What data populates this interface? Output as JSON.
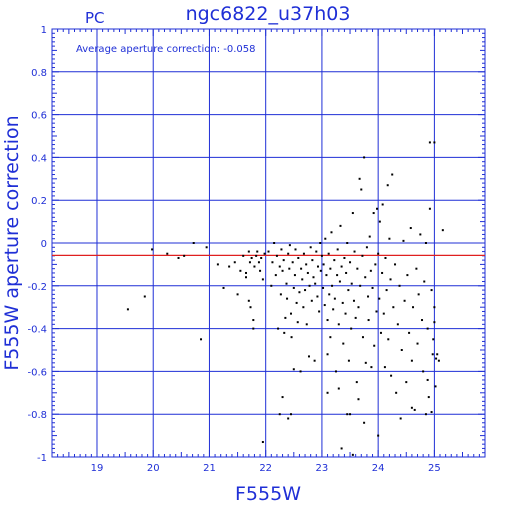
{
  "chart_data": {
    "type": "scatter",
    "title": "ngc6822_u37h03",
    "corner_label": "PC",
    "xlabel": "F555W",
    "ylabel": "F555W aperture correction",
    "annotation": "Average aperture correction: -0.058",
    "xlim": [
      18.2,
      25.9
    ],
    "ylim": [
      -1,
      1
    ],
    "x_ticks": [
      19,
      20,
      21,
      22,
      23,
      24,
      25
    ],
    "y_ticks": [
      -1,
      -0.8,
      -0.6,
      -0.4,
      -0.2,
      0,
      0.2,
      0.4,
      0.6,
      0.8,
      1
    ],
    "x_tick_labels": [
      "19",
      "20",
      "21",
      "22",
      "23",
      "24",
      "25"
    ],
    "y_tick_labels": [
      "-1",
      "-0.8",
      "-0.6",
      "-0.4",
      "-0.2",
      "0",
      "0.2",
      "0.4",
      "0.6",
      "0.8",
      "1"
    ],
    "grid": true,
    "reference_line": {
      "y": -0.058,
      "color": "#e02020"
    },
    "colors": {
      "axes": "#1f2fd6",
      "points": "#000000",
      "reference": "#e02020"
    },
    "points": [
      [
        19.55,
        -0.31
      ],
      [
        19.85,
        -0.25
      ],
      [
        19.98,
        -0.03
      ],
      [
        20.25,
        -0.05
      ],
      [
        20.45,
        -0.07
      ],
      [
        20.55,
        -0.06
      ],
      [
        20.72,
        0.0
      ],
      [
        20.95,
        -0.02
      ],
      [
        20.85,
        -0.45
      ],
      [
        21.15,
        -0.1
      ],
      [
        21.25,
        -0.21
      ],
      [
        21.35,
        -0.11
      ],
      [
        21.45,
        -0.09
      ],
      [
        21.5,
        -0.24
      ],
      [
        21.55,
        -0.13
      ],
      [
        21.6,
        -0.06
      ],
      [
        21.65,
        -0.16
      ],
      [
        21.7,
        -0.04
      ],
      [
        21.72,
        -0.09
      ],
      [
        21.75,
        -0.07
      ],
      [
        21.78,
        -0.36
      ],
      [
        21.8,
        -0.11
      ],
      [
        21.83,
        -0.06
      ],
      [
        21.85,
        -0.04
      ],
      [
        21.88,
        -0.09
      ],
      [
        21.9,
        -0.13
      ],
      [
        21.92,
        -0.07
      ],
      [
        21.95,
        -0.17
      ],
      [
        21.98,
        -0.05
      ],
      [
        21.65,
        -0.14
      ],
      [
        21.7,
        -0.27
      ],
      [
        21.73,
        -0.3
      ],
      [
        21.78,
        -0.4
      ],
      [
        21.95,
        -0.93
      ],
      [
        22.05,
        -0.04
      ],
      [
        22.1,
        -0.2
      ],
      [
        22.12,
        -0.09
      ],
      [
        22.15,
        0.0
      ],
      [
        22.18,
        -0.15
      ],
      [
        22.2,
        -0.06
      ],
      [
        22.22,
        -0.4
      ],
      [
        22.25,
        -0.11
      ],
      [
        22.27,
        -0.24
      ],
      [
        22.28,
        -0.03
      ],
      [
        22.3,
        -0.13
      ],
      [
        22.32,
        -0.08
      ],
      [
        22.33,
        -0.42
      ],
      [
        22.35,
        -0.35
      ],
      [
        22.37,
        -0.19
      ],
      [
        22.38,
        -0.26
      ],
      [
        22.4,
        -0.05
      ],
      [
        22.42,
        -0.12
      ],
      [
        22.43,
        -0.01
      ],
      [
        22.45,
        -0.33
      ],
      [
        22.46,
        -0.44
      ],
      [
        22.48,
        -0.09
      ],
      [
        22.5,
        -0.21
      ],
      [
        22.5,
        -0.59
      ],
      [
        22.52,
        -0.15
      ],
      [
        22.53,
        -0.03
      ],
      [
        22.55,
        -0.28
      ],
      [
        22.57,
        -0.37
      ],
      [
        22.58,
        -0.07
      ],
      [
        22.6,
        -0.23
      ],
      [
        22.62,
        -0.6
      ],
      [
        22.63,
        -0.12
      ],
      [
        22.65,
        -0.17
      ],
      [
        22.67,
        -0.3
      ],
      [
        22.68,
        -0.05
      ],
      [
        22.7,
        -0.22
      ],
      [
        22.72,
        -0.1
      ],
      [
        22.73,
        -0.38
      ],
      [
        22.75,
        -0.14
      ],
      [
        22.77,
        -0.53
      ],
      [
        22.78,
        -0.2
      ],
      [
        22.8,
        -0.02
      ],
      [
        22.82,
        -0.27
      ],
      [
        22.83,
        -0.08
      ],
      [
        22.85,
        -0.16
      ],
      [
        22.87,
        -0.55
      ],
      [
        22.88,
        -0.19
      ],
      [
        22.9,
        -0.04
      ],
      [
        22.92,
        -0.25
      ],
      [
        22.93,
        -0.11
      ],
      [
        22.95,
        -0.32
      ],
      [
        22.97,
        0.0
      ],
      [
        22.98,
        -0.13
      ],
      [
        22.25,
        -0.8
      ],
      [
        22.45,
        -0.8
      ],
      [
        22.4,
        -0.82
      ],
      [
        22.3,
        -0.72
      ],
      [
        23.0,
        -0.06
      ],
      [
        23.02,
        -0.21
      ],
      [
        23.03,
        -0.1
      ],
      [
        23.05,
        -0.29
      ],
      [
        23.06,
        0.02
      ],
      [
        23.08,
        -0.15
      ],
      [
        23.1,
        -0.36
      ],
      [
        23.1,
        -0.52
      ],
      [
        23.12,
        -0.05
      ],
      [
        23.13,
        -0.24
      ],
      [
        23.15,
        -0.12
      ],
      [
        23.15,
        -0.44
      ],
      [
        23.17,
        0.05
      ],
      [
        23.18,
        -0.2
      ],
      [
        23.2,
        -0.31
      ],
      [
        23.22,
        -0.08
      ],
      [
        23.23,
        -0.26
      ],
      [
        23.25,
        -0.6
      ],
      [
        23.27,
        -0.15
      ],
      [
        23.28,
        -0.03
      ],
      [
        23.3,
        -0.38
      ],
      [
        23.32,
        -0.18
      ],
      [
        23.33,
        0.08
      ],
      [
        23.35,
        -0.11
      ],
      [
        23.37,
        -0.28
      ],
      [
        23.38,
        -0.47
      ],
      [
        23.4,
        -0.07
      ],
      [
        23.42,
        -0.33
      ],
      [
        23.43,
        -0.14
      ],
      [
        23.45,
        0.0
      ],
      [
        23.47,
        -0.22
      ],
      [
        23.48,
        -0.55
      ],
      [
        23.5,
        -0.09
      ],
      [
        23.52,
        -0.4
      ],
      [
        23.53,
        -0.19
      ],
      [
        23.55,
        0.14
      ],
      [
        23.57,
        -0.27
      ],
      [
        23.58,
        -0.04
      ],
      [
        23.6,
        -0.35
      ],
      [
        23.62,
        -0.65
      ],
      [
        23.63,
        -0.12
      ],
      [
        23.65,
        -0.3
      ],
      [
        23.67,
        0.3
      ],
      [
        23.68,
        -0.2
      ],
      [
        23.7,
        0.25
      ],
      [
        23.72,
        -0.06
      ],
      [
        23.73,
        -0.44
      ],
      [
        23.75,
        0.4
      ],
      [
        23.77,
        -0.16
      ],
      [
        23.78,
        -0.56
      ],
      [
        23.8,
        -0.02
      ],
      [
        23.82,
        -0.25
      ],
      [
        23.83,
        -0.36
      ],
      [
        23.85,
        0.03
      ],
      [
        23.87,
        -0.13
      ],
      [
        23.88,
        -0.58
      ],
      [
        23.9,
        -0.21
      ],
      [
        23.92,
        0.14
      ],
      [
        23.93,
        -0.48
      ],
      [
        23.95,
        -0.1
      ],
      [
        23.97,
        -0.32
      ],
      [
        23.98,
        0.16
      ],
      [
        23.45,
        -0.8
      ],
      [
        23.5,
        -0.8
      ],
      [
        23.1,
        -0.7
      ],
      [
        23.35,
        -0.96
      ],
      [
        23.55,
        -0.99
      ],
      [
        23.3,
        -0.68
      ],
      [
        23.75,
        -0.84
      ],
      [
        23.65,
        -0.73
      ],
      [
        24.0,
        -0.05
      ],
      [
        24.02,
        -0.26
      ],
      [
        24.03,
        0.1
      ],
      [
        24.05,
        -0.42
      ],
      [
        24.07,
        -0.14
      ],
      [
        24.08,
        0.18
      ],
      [
        24.1,
        -0.33
      ],
      [
        24.12,
        -0.58
      ],
      [
        24.13,
        -0.07
      ],
      [
        24.15,
        -0.22
      ],
      [
        24.17,
        0.27
      ],
      [
        24.18,
        -0.45
      ],
      [
        24.2,
        0.02
      ],
      [
        24.22,
        -0.17
      ],
      [
        24.23,
        -0.62
      ],
      [
        24.25,
        0.32
      ],
      [
        24.27,
        -0.3
      ],
      [
        24.3,
        -0.1
      ],
      [
        24.32,
        -0.7
      ],
      [
        24.35,
        -0.38
      ],
      [
        24.38,
        -0.2
      ],
      [
        24.4,
        -0.82
      ],
      [
        24.42,
        -0.5
      ],
      [
        24.45,
        0.01
      ],
      [
        24.47,
        -0.27
      ],
      [
        24.5,
        -0.65
      ],
      [
        24.52,
        -0.15
      ],
      [
        24.55,
        -0.42
      ],
      [
        24.58,
        0.07
      ],
      [
        24.6,
        -0.55
      ],
      [
        24.62,
        -0.3
      ],
      [
        24.65,
        -0.78
      ],
      [
        24.68,
        -0.12
      ],
      [
        24.7,
        -0.47
      ],
      [
        24.72,
        -0.24
      ],
      [
        24.75,
        0.04
      ],
      [
        24.78,
        -0.36
      ],
      [
        24.8,
        -0.6
      ],
      [
        24.82,
        -0.18
      ],
      [
        24.85,
        0.0
      ],
      [
        24.88,
        -0.4
      ],
      [
        24.9,
        -0.72
      ],
      [
        24.92,
        0.16
      ],
      [
        24.95,
        -0.22
      ],
      [
        24.97,
        -0.52
      ],
      [
        24.0,
        -0.9
      ],
      [
        24.95,
        -0.79
      ],
      [
        24.85,
        -0.8
      ],
      [
        24.88,
        -0.64
      ],
      [
        24.92,
        0.47
      ],
      [
        25.0,
        0.47
      ],
      [
        25.0,
        -0.37
      ],
      [
        25.05,
        -0.52
      ],
      [
        25.03,
        -0.54
      ],
      [
        25.08,
        -0.55
      ],
      [
        25.02,
        -0.67
      ],
      [
        25.15,
        0.06
      ],
      [
        24.98,
        -0.45
      ],
      [
        25.0,
        -0.3
      ],
      [
        24.6,
        -0.77
      ]
    ]
  }
}
